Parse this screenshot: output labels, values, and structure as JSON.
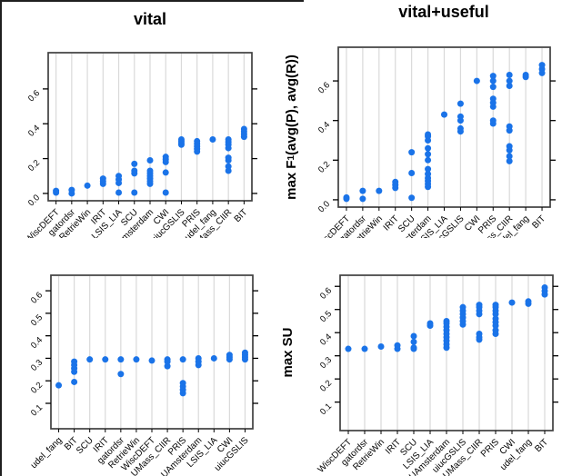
{
  "colors": {
    "dot": "#1a73e8",
    "grid": "#d9d9d9",
    "box_border": "#3f3f3f",
    "text": "#000000",
    "edge": "#1f1f1f"
  },
  "column_titles": [
    "vital",
    "vital+useful"
  ],
  "chart_data": [
    {
      "type": "scatter",
      "panel": "top-left",
      "title": "vital",
      "ylabel_parts": null,
      "ylim": [
        -0.042,
        0.808
      ],
      "yticks": [
        0.0,
        0.2,
        0.4,
        0.6
      ],
      "ytick_labels": [
        "0.0",
        "0.2",
        "0.4",
        "0.6"
      ],
      "grid": true,
      "categories": [
        "WiscDEFT",
        "gatordsr",
        "RetrieWin",
        "IRIT",
        "LSIS_LIA",
        "SCU",
        "UAmsterdam",
        "CWI",
        "uiucGSLIS",
        "PRIS",
        "udel_fang",
        "UMass_CIIR",
        "BIT"
      ],
      "values": [
        [
          0.005,
          0.015
        ],
        [
          0.0,
          0.02
        ],
        [
          0.045
        ],
        [
          0.055,
          0.07,
          0.085
        ],
        [
          0.005,
          0.06,
          0.08,
          0.1
        ],
        [
          0.005,
          0.115,
          0.13,
          0.17
        ],
        [
          0.055,
          0.07,
          0.085,
          0.1,
          0.115,
          0.13,
          0.19
        ],
        [
          0.005,
          0.12,
          0.18,
          0.195,
          0.21
        ],
        [
          0.28,
          0.29,
          0.3,
          0.31
        ],
        [
          0.24,
          0.255,
          0.27,
          0.285,
          0.3
        ],
        [
          0.31
        ],
        [
          0.13,
          0.155,
          0.19,
          0.205,
          0.26,
          0.28,
          0.295,
          0.31
        ],
        [
          0.325,
          0.34,
          0.355,
          0.37
        ]
      ]
    },
    {
      "type": "scatter",
      "panel": "top-right",
      "title": "vital+useful",
      "ylabel_parts": {
        "pre": "max F",
        "sub": "1",
        "post": "(avg(P), avg(R))"
      },
      "ylim": [
        -0.037,
        0.77
      ],
      "yticks": [
        0.0,
        0.2,
        0.4,
        0.6
      ],
      "ytick_labels": [
        "0.0",
        "0.2",
        "0.4",
        "0.6"
      ],
      "grid": true,
      "categories": [
        "WiscDEFT",
        "gatordsr",
        "RetrieWin",
        "IRIT",
        "SCU",
        "UAmsterdam",
        "LSIS_LIA",
        "uiucGSLIS",
        "CWI",
        "PRIS",
        "UMass_CIIR",
        "udel_fang",
        "BIT"
      ],
      "values": [
        [
          0.005,
          0.012
        ],
        [
          0.005,
          0.045
        ],
        [
          0.045
        ],
        [
          0.06,
          0.075,
          0.09
        ],
        [
          0.01,
          0.135,
          0.24
        ],
        [
          0.065,
          0.08,
          0.095,
          0.11,
          0.13,
          0.155,
          0.2,
          0.23,
          0.26,
          0.3,
          0.32,
          0.33
        ],
        [
          0.43
        ],
        [
          0.345,
          0.36,
          0.4,
          0.42,
          0.485
        ],
        [
          0.6
        ],
        [
          0.385,
          0.4,
          0.47,
          0.49,
          0.51,
          0.57,
          0.6,
          0.625
        ],
        [
          0.195,
          0.22,
          0.25,
          0.27,
          0.35,
          0.37,
          0.575,
          0.6,
          0.63
        ],
        [
          0.62,
          0.63
        ],
        [
          0.64,
          0.66,
          0.68
        ]
      ]
    },
    {
      "type": "scatter",
      "panel": "bottom-left",
      "title": null,
      "ylabel_parts": null,
      "ylim": [
        -0.013,
        0.669
      ],
      "yticks": [
        0.1,
        0.2,
        0.3,
        0.4,
        0.5,
        0.6
      ],
      "ytick_labels": [
        "0.1",
        "0.2",
        "0.3",
        "0.4",
        "0.5",
        "0.6"
      ],
      "grid": true,
      "categories": [
        "udel_fang",
        "BIT",
        "SCU",
        "IRIT",
        "gatordsr",
        "RetrieWin",
        "WiscDEFT",
        "UMass_CIIR",
        "PRIS",
        "UAmsterdam",
        "LSIS_LIA",
        "CWI",
        "uiucGSLIS"
      ],
      "values": [
        [
          0.18
        ],
        [
          0.195,
          0.24,
          0.255,
          0.27,
          0.285
        ],
        [
          0.295
        ],
        [
          0.295
        ],
        [
          0.23,
          0.295
        ],
        [
          0.295
        ],
        [
          0.29
        ],
        [
          0.265,
          0.285,
          0.295
        ],
        [
          0.145,
          0.16,
          0.175,
          0.19,
          0.295
        ],
        [
          0.27,
          0.285,
          0.3
        ],
        [
          0.3
        ],
        [
          0.295,
          0.305,
          0.315
        ],
        [
          0.295,
          0.305,
          0.315,
          0.325
        ]
      ]
    },
    {
      "type": "scatter",
      "panel": "bottom-right",
      "title": null,
      "ylabel_parts": {
        "pre": "max SU",
        "sub": "",
        "post": ""
      },
      "ylim": [
        -0.023,
        0.648
      ],
      "yticks": [
        0.1,
        0.2,
        0.3,
        0.4,
        0.5,
        0.6
      ],
      "ytick_labels": [
        "0.1",
        "0.2",
        "0.3",
        "0.4",
        "0.5",
        "0.6"
      ],
      "grid": true,
      "categories": [
        "WiscDEFT",
        "gatordsr",
        "RetrieWin",
        "IRIT",
        "SCU",
        "LSIS_LIA",
        "UAmsterdam",
        "uiucGSLIS",
        "UMass_CIIR",
        "PRIS",
        "CWI",
        "udel_fang",
        "BIT"
      ],
      "values": [
        [
          0.33
        ],
        [
          0.33
        ],
        [
          0.34
        ],
        [
          0.33,
          0.345
        ],
        [
          0.33,
          0.335,
          0.36,
          0.385
        ],
        [
          0.43,
          0.44
        ],
        [
          0.335,
          0.35,
          0.365,
          0.38,
          0.395,
          0.41,
          0.425,
          0.44,
          0.45
        ],
        [
          0.435,
          0.45,
          0.465,
          0.48,
          0.495,
          0.51
        ],
        [
          0.37,
          0.38,
          0.395,
          0.48,
          0.495,
          0.51,
          0.52
        ],
        [
          0.395,
          0.41,
          0.43,
          0.445,
          0.46,
          0.48,
          0.495,
          0.51,
          0.52
        ],
        [
          0.53
        ],
        [
          0.525,
          0.535
        ],
        [
          0.565,
          0.58,
          0.595
        ]
      ]
    }
  ]
}
